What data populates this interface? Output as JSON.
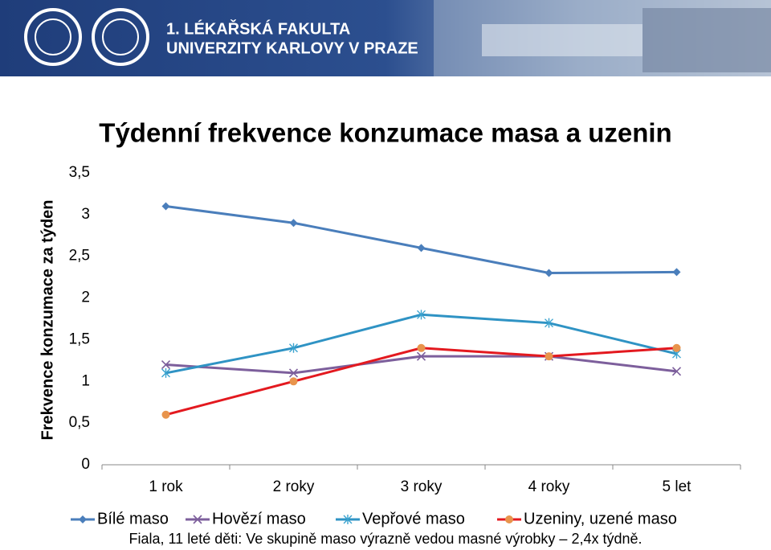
{
  "header": {
    "line1": "1. LÉKAŘSKÁ FAKULTA",
    "line2": "UNIVERZITY KARLOVY V PRAZE"
  },
  "chart_data": {
    "type": "line",
    "title": "Týdenní frekvence konzumace masa a uzenin",
    "y_label": "Frekvence konzumace za týden",
    "categories": [
      "1 rok",
      "2 roky",
      "3 roky",
      "4 roky",
      "5 let"
    ],
    "series": [
      {
        "name": "Bílé maso",
        "color": "#4a7ebb",
        "marker_color": "#4a7ebb",
        "marker": "diamond",
        "values": [
          3.1,
          2.9,
          2.6,
          2.3,
          2.31
        ]
      },
      {
        "name": "Hovězí maso",
        "color": "#7d5f9c",
        "marker_color": "#7d5f9c",
        "marker": "x",
        "values": [
          1.2,
          1.1,
          1.3,
          1.3,
          1.12
        ]
      },
      {
        "name": "Vepřové maso",
        "color": "#2f93c4",
        "marker_color": "#3aa3cf",
        "marker": "star",
        "values": [
          1.1,
          1.4,
          1.8,
          1.7,
          1.33
        ]
      },
      {
        "name": "Uzeniny, uzené maso",
        "color": "#e3191f",
        "marker_color": "#e8944c",
        "marker": "circle",
        "values": [
          0.6,
          1.0,
          1.4,
          1.3,
          1.4
        ]
      }
    ],
    "ylim": [
      0,
      3.5
    ],
    "yticks": [
      0,
      {
        "value": 0.5,
        "label": "0,5"
      },
      1,
      {
        "value": 1.5,
        "label": "1,5"
      },
      2,
      {
        "value": 2.5,
        "label": "2,5"
      },
      3,
      {
        "value": 3.5,
        "label": "3,5"
      }
    ],
    "legend": "bottom",
    "note": "Fiala, 11 leté děti: Ve skupině maso výrazně vedou masné výrobky – 2,4x týdně."
  }
}
